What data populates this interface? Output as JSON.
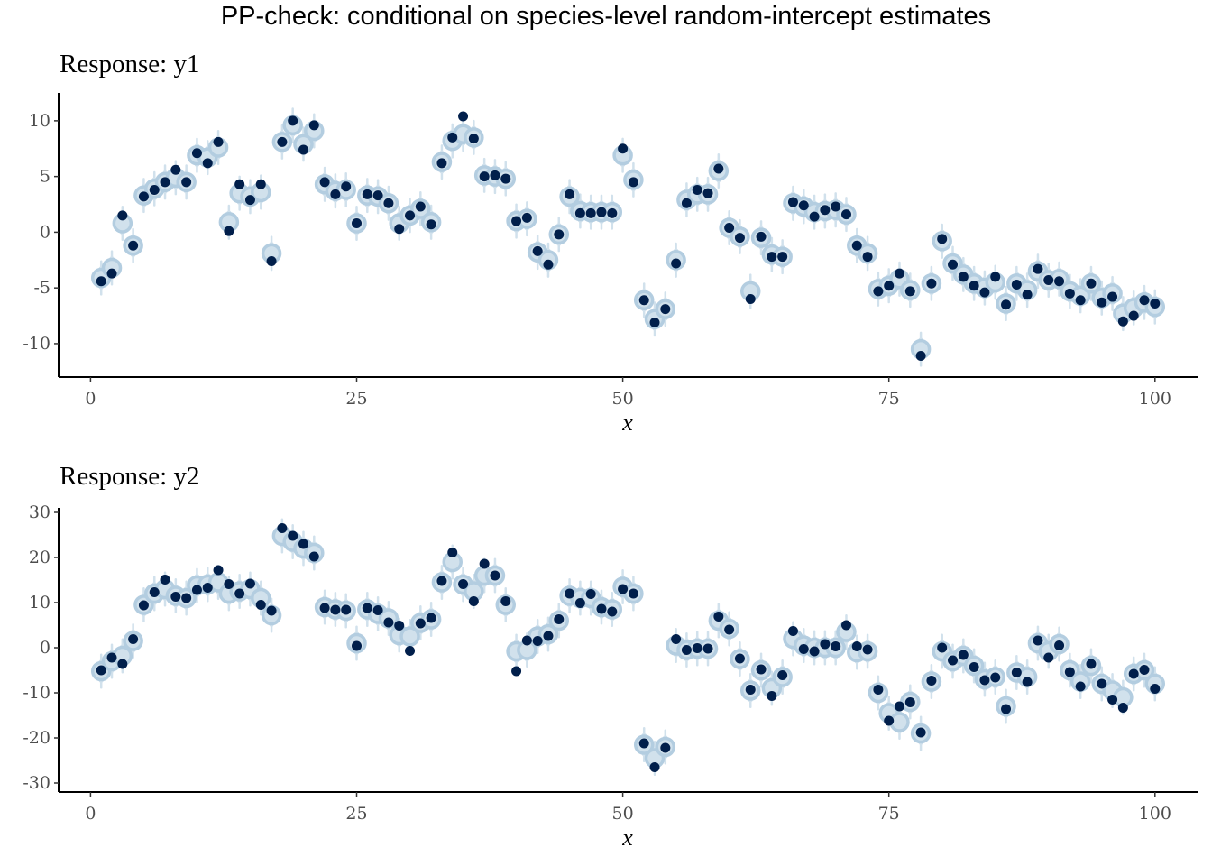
{
  "title": "PP-check: conditional on species-level random-intercept estimates",
  "colors": {
    "observed": "#011f4b",
    "predicted_point": "#b3cde0",
    "predicted_interval": "#d1e1ec"
  },
  "chart_data": [
    {
      "type": "scatter",
      "panel_title": "Response: y1",
      "xlabel": "x",
      "ylabel": "",
      "xlim": [
        -3,
        104
      ],
      "ylim": [
        -13,
        12.5
      ],
      "x_ticks": [
        0,
        25,
        50,
        75,
        100
      ],
      "x_tick_labels": [
        "0",
        "25",
        "50",
        "75",
        "100"
      ],
      "y_ticks": [
        10,
        5,
        0,
        -5,
        -10
      ],
      "y_tick_labels": [
        "10",
        "5",
        "0",
        "-5",
        "-10"
      ],
      "grid": false,
      "legend": "none",
      "series": [
        {
          "role": "predicted",
          "values": [
            -4.1,
            -3.2,
            0.8,
            -1.2,
            3.3,
            3.9,
            4.5,
            4.9,
            4.5,
            6.9,
            6.7,
            7.6,
            0.9,
            3.5,
            3.2,
            3.6,
            -1.9,
            8.1,
            9.6,
            7.9,
            9.1,
            4.3,
            3.7,
            3.8,
            0.8,
            3.3,
            3.2,
            2.6,
            0.8,
            1.5,
            2.1,
            0.9,
            6.3,
            8.2,
            8.8,
            8.5,
            5.1,
            5.0,
            4.8,
            1.0,
            1.2,
            -1.8,
            -2.5,
            -0.2,
            3.2,
            1.9,
            1.8,
            1.8,
            1.8,
            6.9,
            4.7,
            -6.1,
            -7.8,
            -6.9,
            -2.5,
            2.9,
            3.4,
            3.4,
            5.5,
            0.4,
            -0.4,
            -5.3,
            -0.5,
            -2.0,
            -2.2,
            2.6,
            2.3,
            1.8,
            1.9,
            2.0,
            1.6,
            -1.2,
            -1.9,
            -5.1,
            -4.8,
            -4.2,
            -5.2,
            -10.5,
            -4.6,
            -0.8,
            -2.8,
            -3.8,
            -4.6,
            -5.0,
            -4.5,
            -6.4,
            -4.6,
            -5.2,
            -3.5,
            -4.3,
            -4.2,
            -5.3,
            -5.7,
            -4.6,
            -5.9,
            -5.5,
            -7.3,
            -6.8,
            -6.3,
            -6.7
          ]
        },
        {
          "role": "observed",
          "values": [
            -4.4,
            -3.7,
            1.5,
            -1.2,
            3.2,
            3.8,
            4.5,
            5.6,
            4.5,
            7.1,
            6.2,
            8.1,
            0.1,
            4.3,
            2.9,
            4.3,
            -2.6,
            8.1,
            10.0,
            7.4,
            9.6,
            4.5,
            3.4,
            4.1,
            0.8,
            3.4,
            3.3,
            2.6,
            0.3,
            1.5,
            2.3,
            0.7,
            6.2,
            8.5,
            10.4,
            8.4,
            5.0,
            5.1,
            4.8,
            1.0,
            1.3,
            -1.7,
            -2.9,
            -0.2,
            3.4,
            1.7,
            1.7,
            1.8,
            1.7,
            7.5,
            4.5,
            -6.1,
            -8.1,
            -6.9,
            -2.8,
            2.6,
            3.8,
            3.5,
            5.7,
            0.4,
            -0.5,
            -6.0,
            -0.4,
            -2.2,
            -2.2,
            2.7,
            2.4,
            1.4,
            2.0,
            2.3,
            1.6,
            -1.2,
            -2.2,
            -5.3,
            -4.8,
            -3.7,
            -5.3,
            -11.1,
            -4.6,
            -0.6,
            -2.9,
            -4.0,
            -4.8,
            -5.4,
            -4.0,
            -6.5,
            -4.7,
            -5.6,
            -3.3,
            -4.3,
            -4.4,
            -5.5,
            -6.1,
            -4.6,
            -6.3,
            -5.8,
            -8.0,
            -7.5,
            -6.1,
            -6.4
          ]
        }
      ]
    },
    {
      "type": "scatter",
      "panel_title": "Response: y2",
      "xlabel": "x",
      "ylabel": "",
      "xlim": [
        -3,
        104
      ],
      "ylim": [
        -32,
        31
      ],
      "x_ticks": [
        0,
        25,
        50,
        75,
        100
      ],
      "x_tick_labels": [
        "0",
        "25",
        "50",
        "75",
        "100"
      ],
      "y_ticks": [
        30,
        20,
        10,
        0,
        -10,
        -20,
        -30
      ],
      "y_tick_labels": [
        "30",
        "20",
        "10",
        "0",
        "-10",
        "-20",
        "-30"
      ],
      "grid": false,
      "legend": "none",
      "series": [
        {
          "role": "predicted",
          "values": [
            -5.2,
            -3.0,
            -1.8,
            1.5,
            9.5,
            12.0,
            13.0,
            11.5,
            11.0,
            13.8,
            14.0,
            14.5,
            12.0,
            12.5,
            13.0,
            11.0,
            7.2,
            24.8,
            23.5,
            22.0,
            21.0,
            9.0,
            8.5,
            8.2,
            1.0,
            8.5,
            7.5,
            6.5,
            2.8,
            2.5,
            5.5,
            6.3,
            14.5,
            19.0,
            14.0,
            12.5,
            16.0,
            16.0,
            9.5,
            -0.8,
            -0.5,
            2.5,
            3.0,
            6.0,
            11.5,
            11.0,
            11.0,
            9.0,
            8.5,
            13.5,
            12.0,
            -21.5,
            -24.5,
            -22.0,
            0.5,
            -0.5,
            -0.2,
            -0.2,
            6.0,
            4.2,
            -2.5,
            -9.5,
            -5.0,
            -9.0,
            -6.5,
            2.0,
            0.5,
            0.0,
            0.0,
            0.0,
            3.5,
            -1.0,
            -0.8,
            -10.0,
            -14.5,
            -16.5,
            -12.0,
            -19.0,
            -7.5,
            -0.8,
            -3.0,
            -1.8,
            -4.0,
            -7.0,
            -6.5,
            -13.0,
            -5.5,
            -6.5,
            1.0,
            -0.8,
            0.8,
            -5.0,
            -7.5,
            -4.0,
            -8.0,
            -9.5,
            -11.0,
            -5.8,
            -5.0,
            -8.0
          ]
        },
        {
          "role": "observed",
          "values": [
            -5.0,
            -2.2,
            -3.6,
            1.9,
            9.4,
            12.3,
            15.1,
            11.3,
            11.0,
            12.8,
            13.3,
            17.2,
            14.1,
            12.0,
            14.2,
            9.5,
            8.2,
            26.5,
            24.8,
            23.0,
            20.2,
            8.8,
            8.4,
            8.4,
            0.4,
            8.8,
            8.3,
            5.6,
            4.9,
            -0.7,
            5.4,
            6.6,
            14.8,
            21.1,
            14.1,
            10.3,
            18.6,
            16.0,
            10.3,
            -5.2,
            1.6,
            1.5,
            2.6,
            6.3,
            12.0,
            9.9,
            11.9,
            8.6,
            8.0,
            13.0,
            12.0,
            -21.2,
            -26.5,
            -22.2,
            1.9,
            -0.5,
            -0.1,
            -0.2,
            6.9,
            4.0,
            -2.4,
            -9.3,
            -4.8,
            -10.7,
            -6.1,
            3.7,
            -0.3,
            -0.8,
            0.8,
            0.3,
            5.0,
            0.3,
            -0.4,
            -9.3,
            -16.2,
            -13.0,
            -12.1,
            -18.8,
            -7.3,
            0.0,
            -2.8,
            -1.6,
            -4.3,
            -7.2,
            -6.6,
            -13.6,
            -5.5,
            -7.6,
            1.6,
            -2.2,
            0.5,
            -5.4,
            -8.6,
            -3.6,
            -8.0,
            -11.5,
            -13.3,
            -5.8,
            -4.9,
            -9.1
          ]
        }
      ]
    }
  ]
}
